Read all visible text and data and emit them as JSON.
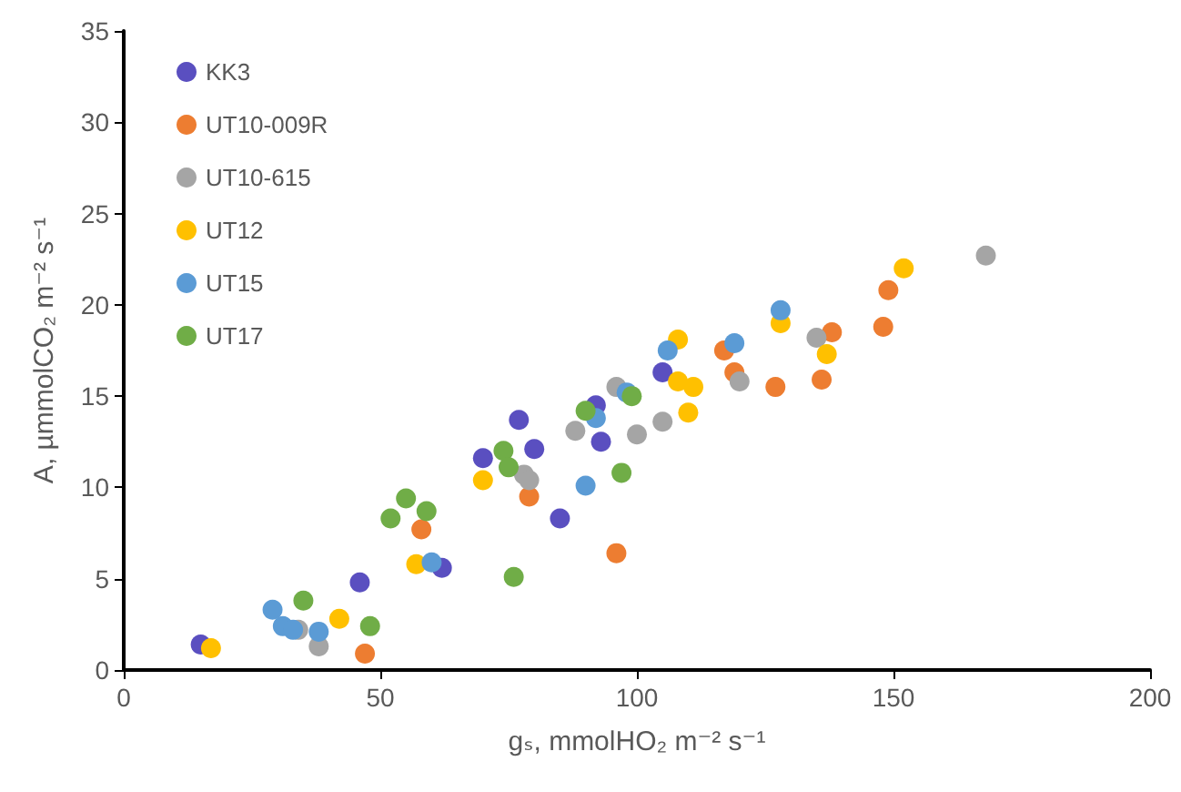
{
  "chart_data": {
    "type": "scatter",
    "xlabel": "gₛ, mmolHO₂ m⁻² s⁻¹",
    "ylabel": "A, µmmolCO₂ m⁻² s⁻¹",
    "xlim": [
      0,
      200
    ],
    "xticks": [
      0,
      50,
      100,
      150,
      200
    ],
    "ylim": [
      0,
      35
    ],
    "yticks": [
      0,
      5,
      10,
      15,
      20,
      25,
      30,
      35
    ],
    "grid": false,
    "legend": "top left",
    "marker": "circle",
    "series": [
      {
        "name": "KK3",
        "color": "#5a4fc0",
        "x": [
          15,
          46,
          62,
          70,
          77,
          80,
          85,
          92,
          93,
          105
        ],
        "values": [
          1.4,
          4.8,
          5.6,
          11.6,
          13.7,
          12.1,
          8.3,
          14.5,
          12.5,
          16.3
        ]
      },
      {
        "name": "UT10-009R",
        "color": "#ed7d31",
        "x": [
          47,
          58,
          79,
          96,
          117,
          119,
          127,
          136,
          138,
          148,
          149
        ],
        "values": [
          0.9,
          7.7,
          9.5,
          6.4,
          17.5,
          16.3,
          15.5,
          15.9,
          18.5,
          18.8,
          20.8
        ]
      },
      {
        "name": "UT10-615",
        "color": "#a5a5a5",
        "x": [
          38,
          34,
          78,
          79,
          88,
          96,
          100,
          105,
          120,
          135,
          168
        ],
        "values": [
          1.3,
          2.2,
          10.7,
          10.4,
          13.1,
          15.5,
          12.9,
          13.6,
          15.8,
          18.2,
          22.7
        ]
      },
      {
        "name": "UT12",
        "color": "#ffc000",
        "x": [
          17,
          42,
          57,
          70,
          108,
          108,
          110,
          111,
          128,
          137,
          152
        ],
        "values": [
          1.2,
          2.8,
          5.8,
          10.4,
          18.1,
          15.8,
          14.1,
          15.5,
          19.0,
          17.3,
          22.0
        ]
      },
      {
        "name": "UT15",
        "color": "#5b9bd5",
        "x": [
          29,
          31,
          33,
          38,
          60,
          90,
          92,
          98,
          106,
          119,
          128
        ],
        "values": [
          3.3,
          2.4,
          2.2,
          2.1,
          5.9,
          10.1,
          13.8,
          15.2,
          17.5,
          17.9,
          19.7
        ]
      },
      {
        "name": "UT17",
        "color": "#70ad47",
        "x": [
          35,
          48,
          52,
          55,
          59,
          74,
          75,
          76,
          90,
          97,
          99
        ],
        "values": [
          3.8,
          2.4,
          8.3,
          9.4,
          8.7,
          12.0,
          11.1,
          5.1,
          14.2,
          10.8,
          15.0
        ]
      }
    ]
  }
}
